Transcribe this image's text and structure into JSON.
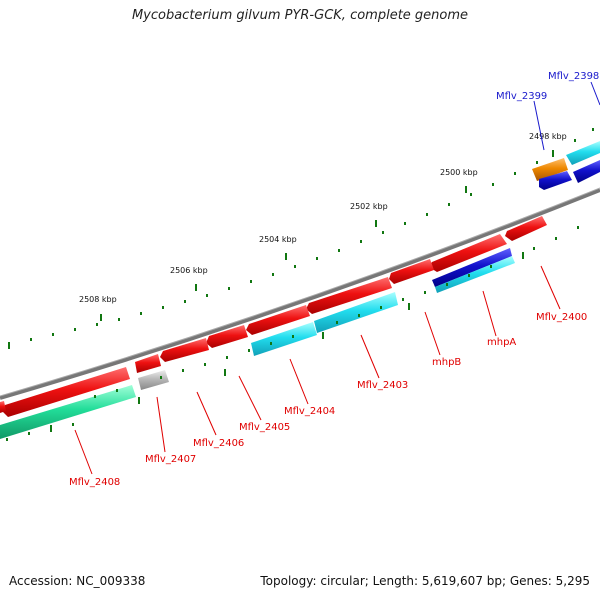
{
  "title": "Mycobacterium gilvum PYR-GCK, complete genome",
  "footer": {
    "accession": "Accession: NC_009338",
    "summary": "Topology: circular; Length: 5,619,607 bp; Genes: 5,295"
  },
  "kbp_ticks": [
    "2498 kbp",
    "2500 kbp",
    "2502 kbp",
    "2504 kbp",
    "2506 kbp",
    "2508 kbp"
  ],
  "gene_labels": {
    "mflv_2398": "Mflv_2398",
    "mflv_2399": "Mflv_2399",
    "mflv_2400": "Mflv_2400",
    "mhpA": "mhpA",
    "mhpB": "mhpB",
    "mflv_2403": "Mflv_2403",
    "mflv_2404": "Mflv_2404",
    "mflv_2405": "Mflv_2405",
    "mflv_2406": "Mflv_2406",
    "mflv_2407": "Mflv_2407",
    "mflv_2408": "Mflv_2408"
  },
  "colors": {
    "cds_red": "#ee1111",
    "trna_cyan": "#22ccee",
    "blue": "#1111cc",
    "orange": "#ee8800",
    "grey": "#b0b0b0",
    "green": "#22dd99",
    "backbone": "#777777",
    "tick_green": "#117711"
  }
}
